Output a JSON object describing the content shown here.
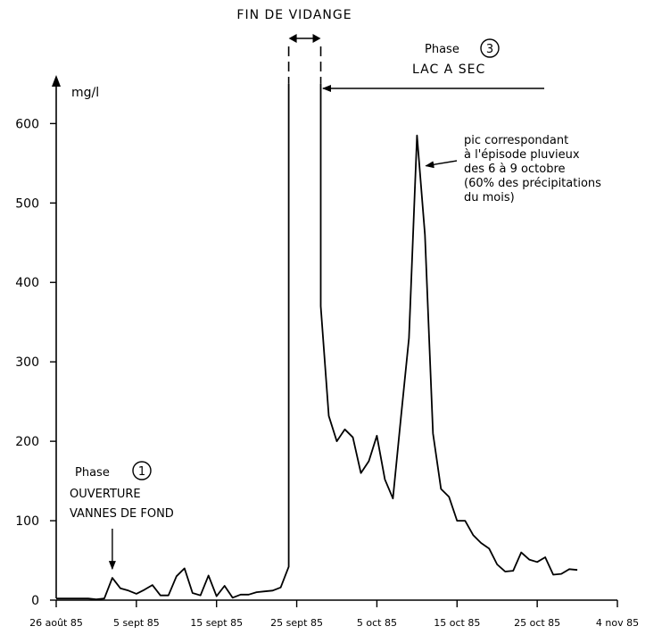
{
  "chart_data": {
    "type": "line",
    "title": "",
    "xlabel": "",
    "ylabel": "mg/l",
    "grid": false,
    "ylim": [
      0,
      660
    ],
    "xlim": [
      "1985-08-26",
      "1985-11-04"
    ],
    "y_ticks": [
      {
        "value": 0,
        "label": "0"
      },
      {
        "value": 100,
        "label": "100"
      },
      {
        "value": 200,
        "label": "200"
      },
      {
        "value": 300,
        "label": "300"
      },
      {
        "value": 400,
        "label": "400"
      },
      {
        "value": 500,
        "label": "500"
      },
      {
        "value": 600,
        "label": "600"
      }
    ],
    "x_ticks": [
      {
        "value": "1985-08-26",
        "label": "26 août 85"
      },
      {
        "value": "1985-09-05",
        "label": "5 sept 85"
      },
      {
        "value": "1985-09-15",
        "label": "15 sept 85"
      },
      {
        "value": "1985-09-25",
        "label": "25 sept 85"
      },
      {
        "value": "1985-10-05",
        "label": "5 oct 85"
      },
      {
        "value": "1985-10-15",
        "label": "15 oct 85"
      },
      {
        "value": "1985-10-25",
        "label": "25 oct 85"
      },
      {
        "value": "1985-11-04",
        "label": "4 nov 85"
      }
    ],
    "series": [
      {
        "segments": [
          [
            [
              "1985-08-26",
              2
            ],
            [
              "1985-08-27",
              2
            ],
            [
              "1985-08-28",
              2
            ],
            [
              "1985-08-29",
              2
            ],
            [
              "1985-08-30",
              2
            ],
            [
              "1985-08-31",
              1
            ],
            [
              "1985-09-01",
              2
            ],
            [
              "1985-09-02",
              28
            ],
            [
              "1985-09-03",
              15
            ],
            [
              "1985-09-04",
              12
            ],
            [
              "1985-09-05",
              8
            ],
            [
              "1985-09-06",
              13
            ],
            [
              "1985-09-07",
              19
            ],
            [
              "1985-09-08",
              6
            ],
            [
              "1985-09-09",
              6
            ],
            [
              "1985-09-10",
              30
            ],
            [
              "1985-09-11",
              40
            ],
            [
              "1985-09-12",
              9
            ],
            [
              "1985-09-13",
              6
            ],
            [
              "1985-09-14",
              31
            ],
            [
              "1985-09-15",
              5
            ],
            [
              "1985-09-16",
              18
            ],
            [
              "1985-09-17",
              3
            ],
            [
              "1985-09-18",
              7
            ],
            [
              "1985-09-19",
              7
            ],
            [
              "1985-09-20",
              10
            ],
            [
              "1985-09-21",
              11
            ],
            [
              "1985-09-22",
              12
            ],
            [
              "1985-09-23",
              16
            ],
            [
              "1985-09-24",
              42
            ],
            [
              "1985-09-24",
              650
            ]
          ],
          [
            [
              "1985-09-28",
              650
            ],
            [
              "1985-09-28",
              370
            ],
            [
              "1985-09-29",
              232
            ],
            [
              "1985-09-30",
              200
            ],
            [
              "1985-10-01",
              215
            ],
            [
              "1985-10-02",
              205
            ],
            [
              "1985-10-03",
              160
            ],
            [
              "1985-10-04",
              175
            ],
            [
              "1985-10-05",
              207
            ],
            [
              "1985-10-06",
              152
            ],
            [
              "1985-10-07",
              128
            ],
            [
              "1985-10-08",
              230
            ],
            [
              "1985-10-09",
              330
            ],
            [
              "1985-10-10",
              585
            ],
            [
              "1985-10-11",
              460
            ],
            [
              "1985-10-12",
              210
            ],
            [
              "1985-10-13",
              140
            ],
            [
              "1985-10-14",
              130
            ],
            [
              "1985-10-15",
              100
            ],
            [
              "1985-10-16",
              100
            ],
            [
              "1985-10-17",
              82
            ],
            [
              "1985-10-18",
              72
            ],
            [
              "1985-10-19",
              65
            ],
            [
              "1985-10-20",
              45
            ],
            [
              "1985-10-21",
              36
            ],
            [
              "1985-10-22",
              37
            ],
            [
              "1985-10-23",
              60
            ],
            [
              "1985-10-24",
              51
            ],
            [
              "1985-10-25",
              48
            ],
            [
              "1985-10-26",
              54
            ],
            [
              "1985-10-27",
              32
            ],
            [
              "1985-10-28",
              33
            ],
            [
              "1985-10-29",
              39
            ],
            [
              "1985-10-30",
              38
            ]
          ]
        ]
      }
    ],
    "annotations": {
      "phase1": {
        "phase_label": "Phase",
        "phase_number": "1",
        "line1": "OUVERTURE",
        "line2": "VANNES DE FOND",
        "target": [
          "1985-09-02",
          28
        ]
      },
      "fin_vidange": {
        "label": "FIN DE VIDANGE",
        "from": "1985-09-24",
        "to": "1985-09-28"
      },
      "phase3": {
        "phase_label": "Phase",
        "phase_number": "3",
        "line1": "LAC A SEC"
      },
      "pic": {
        "lines": [
          "pic correspondant",
          "à l'épisode pluvieux",
          "des 6 à 9 octobre",
          "(60% des précipitations",
          "du mois)"
        ],
        "target": [
          "1985-10-10",
          540
        ]
      }
    }
  }
}
